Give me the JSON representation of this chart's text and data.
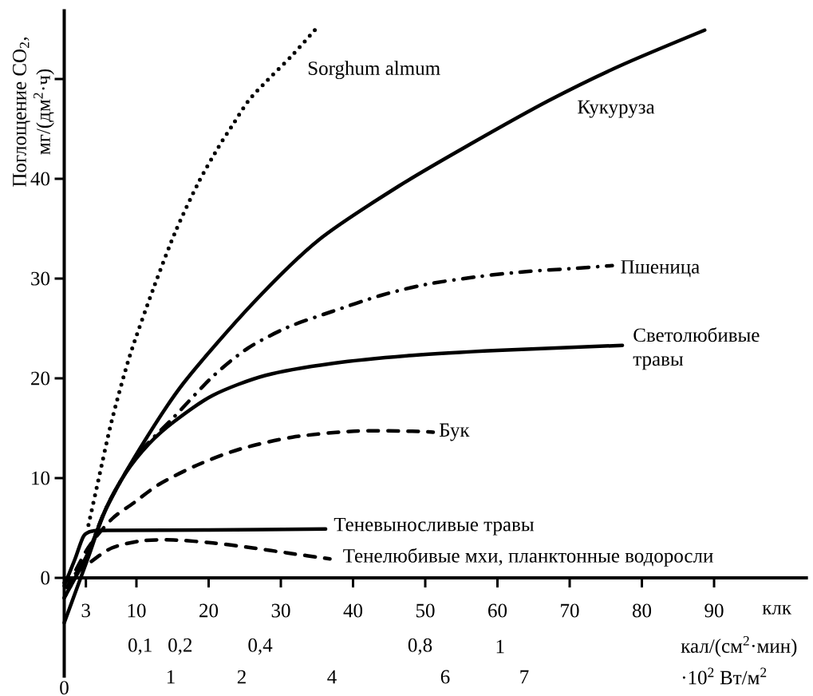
{
  "chart_data": {
    "type": "line",
    "ylabel": "Поглощение CO$_{2}$, мг/(дм$^{2}$·ч)",
    "xlabel": "клк",
    "x2label": "кал/(см$^{2}$·мин)",
    "xlim": [
      0,
      103
    ],
    "xticks": [
      3,
      10,
      20,
      30,
      40,
      50,
      60,
      70,
      80,
      90
    ],
    "x2lim": [
      -0.09,
      1.77
    ],
    "x2ticks": [
      {
        "value": 0.1,
        "label": "0,1"
      },
      {
        "value": 0.2,
        "label": "0,2"
      },
      {
        "value": 0.4,
        "label": "0,4"
      },
      {
        "value": 0.8,
        "label": "0,8"
      },
      1
    ],
    "ylim": [
      -10,
      57
    ],
    "yticks": [
      0,
      10,
      20,
      30,
      40,
      {
        "value": 50,
        "label": null
      }
    ],
    "annotations": [
      "0",
      "1",
      "2",
      "4",
      "6",
      "7",
      "·10$^{2}$ Вт/м$^{2}$"
    ],
    "series": [
      {
        "name": "Sorghum almum",
        "color": "#000000",
        "line_style": "dotted",
        "x": [
          3.3,
          4.7,
          6.6,
          9.1,
          12.4,
          15.4,
          18.5,
          21.3,
          23.5,
          25.5,
          27.9,
          31.6,
          34.7
        ],
        "values": [
          5.1,
          9.7,
          15.8,
          22.3,
          29.1,
          34.7,
          39.5,
          43.1,
          45.6,
          47.8,
          49.7,
          52.4,
          54.9
        ]
      },
      {
        "name": "Кукуруза",
        "color": "#000000",
        "line_style": "solid",
        "x": [
          0,
          3.3,
          5.8,
          10.6,
          16.5,
          26.1,
          35.3,
          46.4,
          56.3,
          67,
          76.9,
          88.7
        ],
        "values": [
          -4.5,
          2,
          6.9,
          13.1,
          19.5,
          27.5,
          33.9,
          39.3,
          43.5,
          47.8,
          51.3,
          54.9
        ]
      },
      {
        "name": "Пшеница",
        "color": "#000000",
        "line_style": "dashdot",
        "x": [
          0,
          3.3,
          5.8,
          9.9,
          15.05,
          20.6,
          25.4,
          30.9,
          37.1,
          43.8,
          50,
          57.4,
          64,
          70.3,
          75.9
        ],
        "values": [
          -2,
          2.5,
          7,
          12.1,
          16,
          20.2,
          23,
          25.1,
          26.7,
          28.3,
          29.4,
          30.2,
          30.7,
          31,
          31.3
        ]
      },
      {
        "name": "Светолюбивые травы",
        "color": "#000000",
        "line_style": "solid",
        "x": [
          0,
          3.3,
          5.8,
          8.5,
          11.7,
          15.1,
          20.6,
          27.9,
          37.2,
          48.2,
          60,
          77.3
        ],
        "values": [
          -2,
          2.5,
          7,
          10.5,
          13.4,
          15.6,
          18.3,
          20.3,
          21.5,
          22.3,
          22.8,
          23.3
        ]
      },
      {
        "name": "Бук",
        "color": "#000000",
        "line_style": "dashed",
        "x": [
          0,
          3.3,
          6.6,
          9.6,
          13.2,
          18.4,
          24.3,
          31.6,
          40.1,
          48.2,
          51.1
        ],
        "values": [
          -1.5,
          3,
          5.9,
          7.5,
          9.4,
          11.3,
          12.9,
          14.1,
          14.7,
          14.7,
          14.6
        ]
      },
      {
        "name": "Теневыносливые травы",
        "color": "#000000",
        "line_style": "solid",
        "x": [
          0,
          1.5,
          2.7,
          4,
          6,
          20,
          36.2
        ],
        "values": [
          -0.8,
          1.9,
          4.2,
          4.7,
          4.75,
          4.8,
          4.9
        ]
      },
      {
        "name": "Тенелюбивые мхи, планктонные водоросли",
        "color": "#000000",
        "line_style": "dashed",
        "x": [
          0,
          3.3,
          6.6,
          10.6,
          15.1,
          20.6,
          26.1,
          30.9,
          36.8
        ],
        "values": [
          -0.5,
          1.4,
          3,
          3.7,
          3.8,
          3.5,
          3,
          2.5,
          1.9
        ]
      }
    ]
  }
}
